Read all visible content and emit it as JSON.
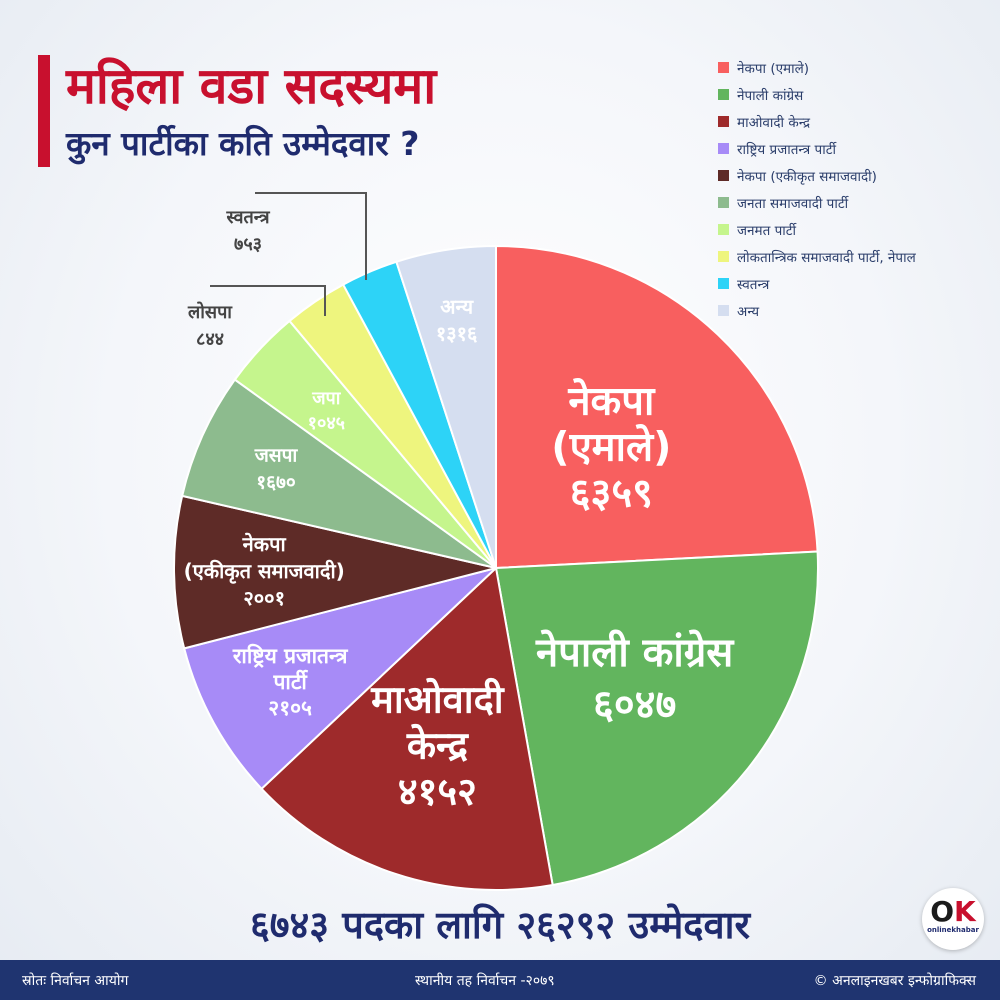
{
  "title": {
    "line1": "महिला वडा सदस्यमा",
    "line2": "कुन पार्टीका कति उम्मेदवार ?"
  },
  "chart_data": {
    "type": "pie",
    "start_angle_deg": 0,
    "direction": "clockwise",
    "slices": [
      {
        "label": "नेकपा (एमाले)",
        "value": 6359,
        "value_label": "६३५९",
        "chart_label": [
          "नेकपा",
          "(एमाले)"
        ],
        "color": "#f85f5f"
      },
      {
        "label": "नेपाली कांग्रेस",
        "value": 6047,
        "value_label": "६०४७",
        "chart_label": [
          "नेपाली कांग्रेस"
        ],
        "color": "#62b55e"
      },
      {
        "label": "माओवादी केन्द्र",
        "value": 4152,
        "value_label": "४१५२",
        "chart_label": [
          "माओवादी",
          "केन्द्र"
        ],
        "color": "#9e2a2b"
      },
      {
        "label": "राष्ट्रिय प्रजातन्त्र पार्टी",
        "value": 2105,
        "value_label": "२१०५",
        "chart_label": [
          "राष्ट्रिय प्रजातन्त्र",
          "पार्टी"
        ],
        "color": "#a78bf7"
      },
      {
        "label": "नेकपा (एकीकृत समाजवादी)",
        "value": 2001,
        "value_label": "२००१",
        "chart_label": [
          "नेकपा",
          "(एकीकृत समाजवादी)"
        ],
        "color": "#5e2b27"
      },
      {
        "label": "जनता समाजवादी पार्टी",
        "value": 1670,
        "value_label": "१६७०",
        "chart_label": [
          "जसपा"
        ],
        "color": "#8dbb8e"
      },
      {
        "label": "जनमत पार्टी",
        "value": 1045,
        "value_label": "१०४५",
        "chart_label": [
          "जपा"
        ],
        "color": "#c5f58d"
      },
      {
        "label": "लोकतान्त्रिक समाजवादी पार्टी, नेपाल",
        "value": 844,
        "value_label": "८४४",
        "chart_label": [
          "लोसपा"
        ],
        "color": "#eef57e"
      },
      {
        "label": "स्वतन्त्र",
        "value": 753,
        "value_label": "७५३",
        "chart_label": [
          "स्वतन्त्र"
        ],
        "color": "#2dd3f7"
      },
      {
        "label": "अन्य",
        "value": 1316,
        "value_label": "१३१६",
        "chart_label": [
          "अन्य"
        ],
        "color": "#d5def0"
      }
    ],
    "legend_position": "top-right"
  },
  "summary": "६७४३ पदका लागि २६२९२ उम्मेदवार",
  "footer": {
    "source": "स्रोतः निर्वाचन आयोग",
    "center": "स्थानीय तह निर्वाचन -२०७९",
    "credit": "© अनलाइनखबर इन्फोग्राफिक्स"
  },
  "logo": {
    "mark_o": "O",
    "mark_k": "K",
    "text": "onlinekhabar"
  }
}
